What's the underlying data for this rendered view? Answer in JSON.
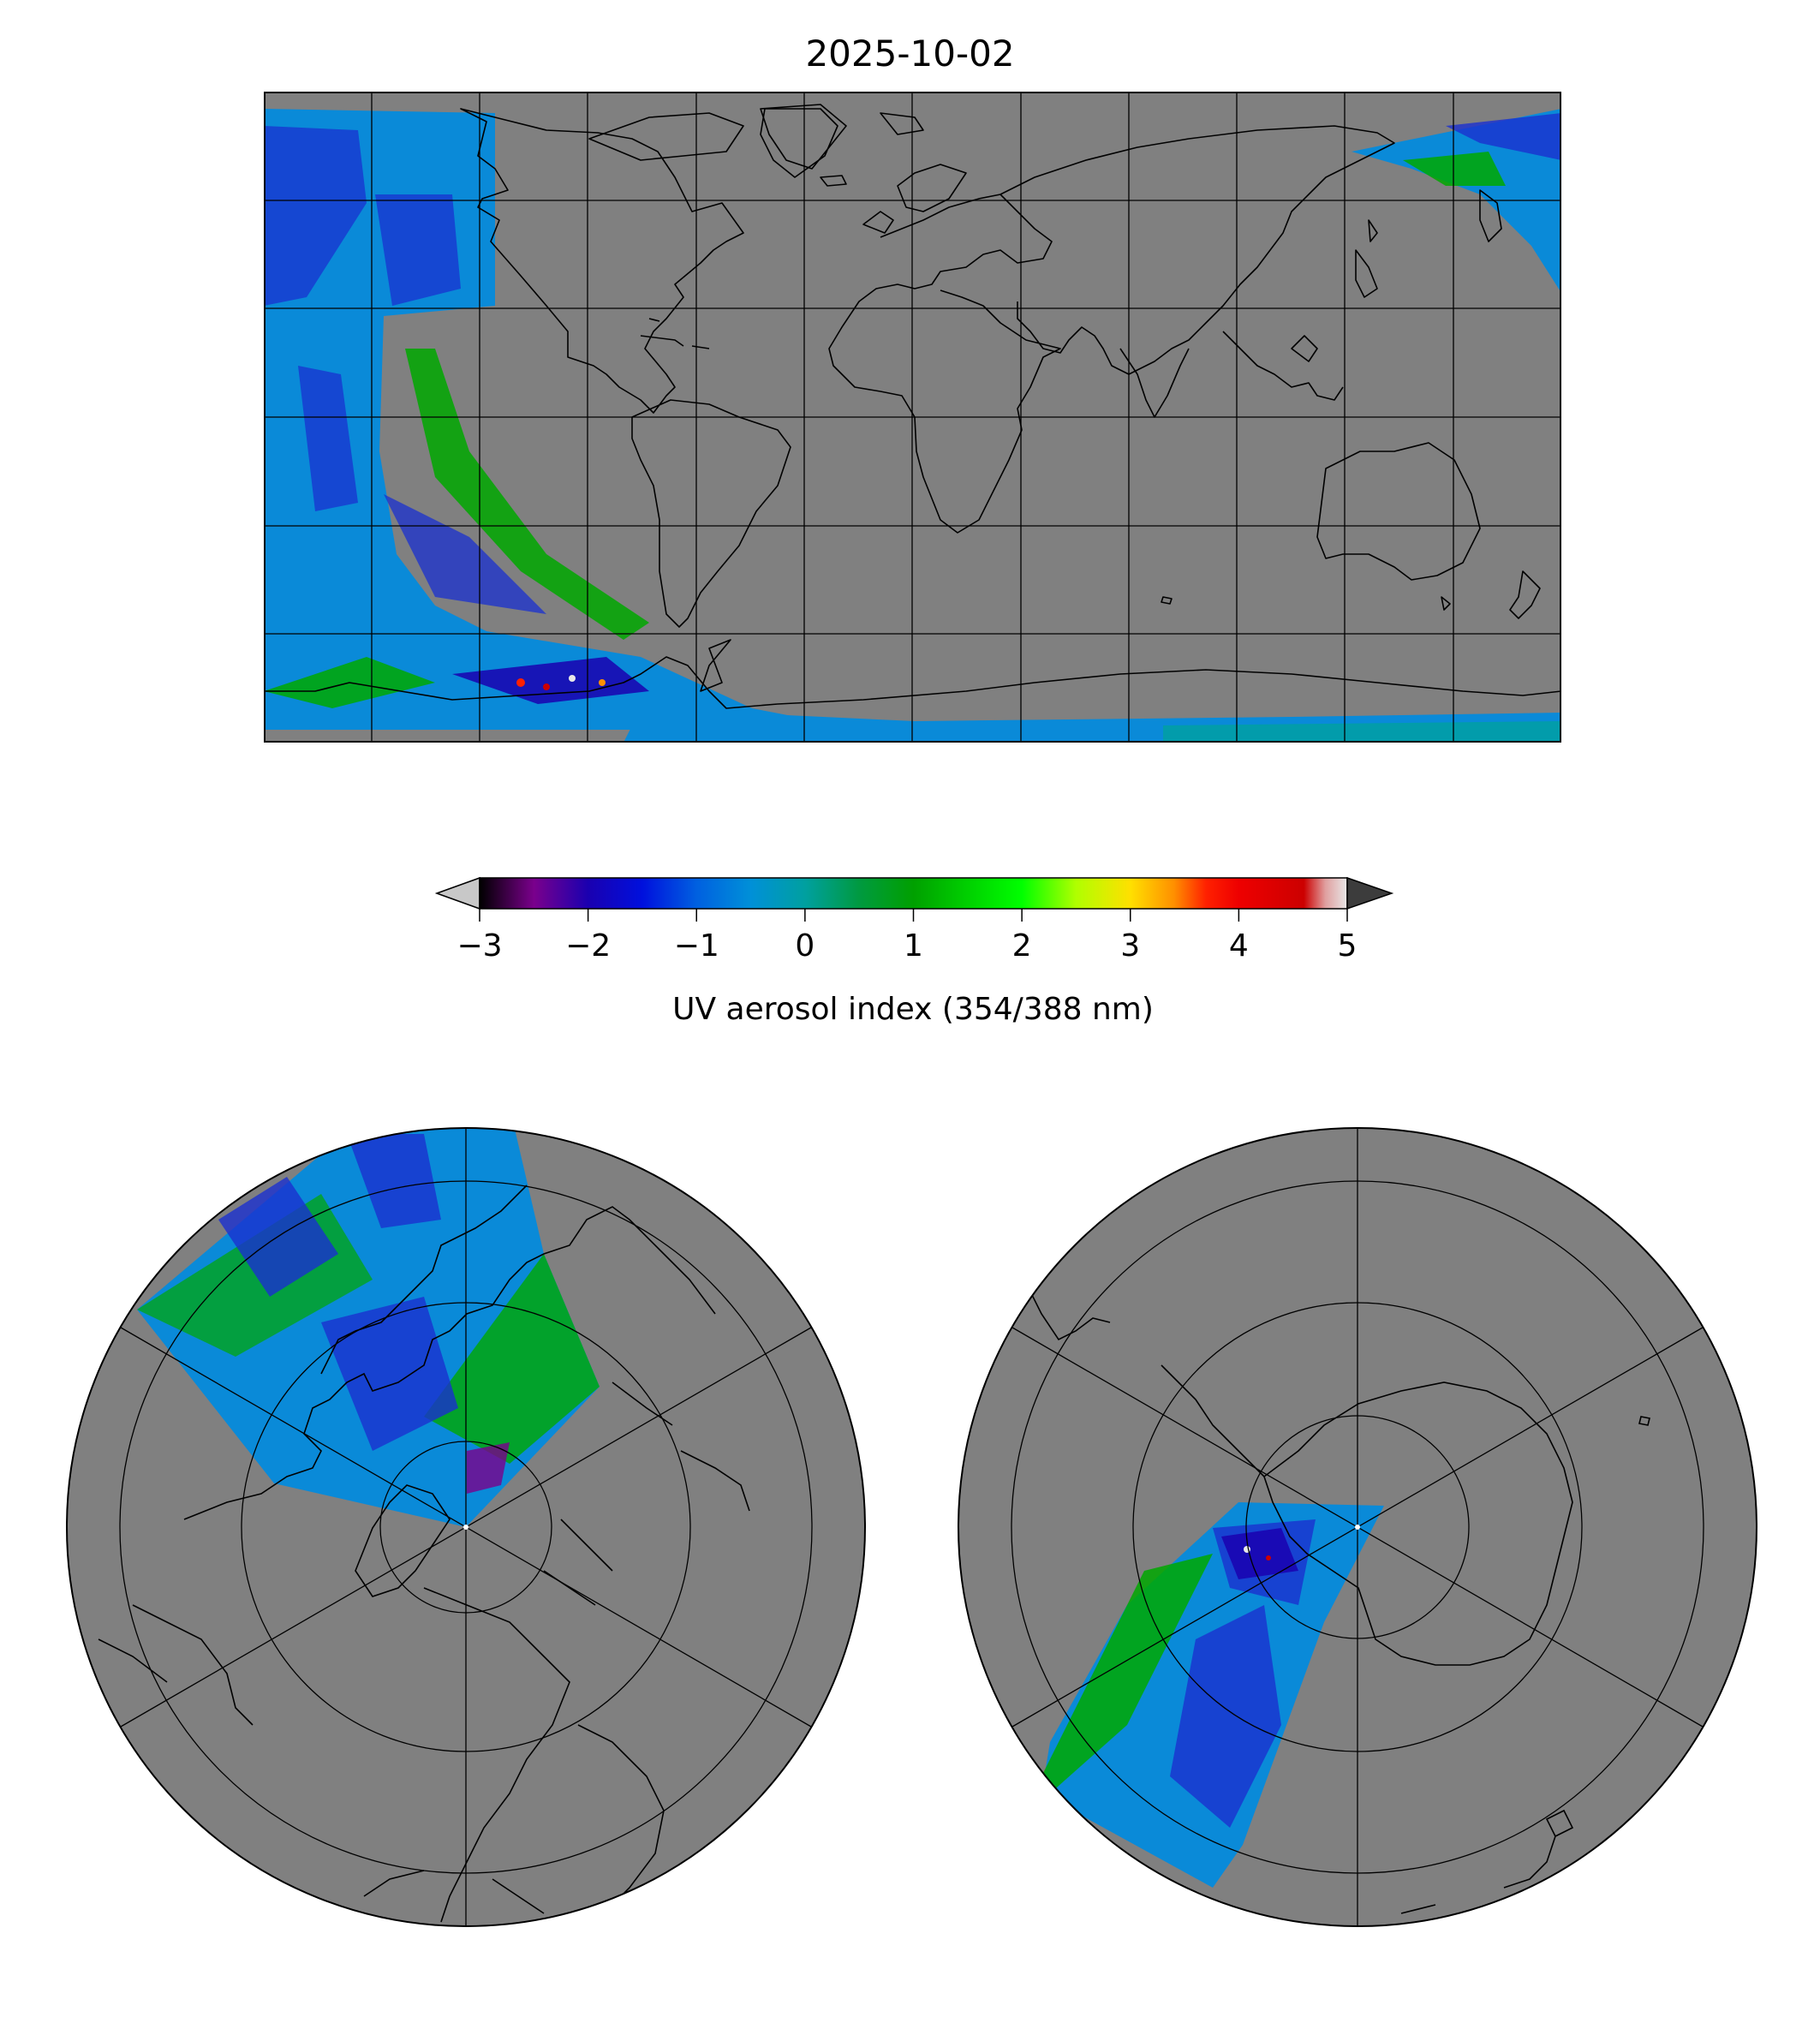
{
  "title": "2025-10-02",
  "colorbar": {
    "label": "UV aerosol index (354/388 nm)",
    "ticks": [
      "−3",
      "−2",
      "−1",
      "0",
      "1",
      "2",
      "3",
      "4",
      "5"
    ],
    "min": -3,
    "max": 5,
    "extend": "both",
    "under_color": "#c8c8c8",
    "over_color": "#3c3c3c",
    "stops": [
      {
        "value": -3.0,
        "color": "#000000"
      },
      {
        "value": -2.5,
        "color": "#7a008c"
      },
      {
        "value": -2.0,
        "color": "#1a00b0"
      },
      {
        "value": -1.5,
        "color": "#0010dd"
      },
      {
        "value": -1.0,
        "color": "#0060e0"
      },
      {
        "value": -0.5,
        "color": "#0090d8"
      },
      {
        "value": 0.0,
        "color": "#00a0a0"
      },
      {
        "value": 0.5,
        "color": "#009a40"
      },
      {
        "value": 1.0,
        "color": "#00a000"
      },
      {
        "value": 1.5,
        "color": "#00d000"
      },
      {
        "value": 2.0,
        "color": "#00ff00"
      },
      {
        "value": 2.5,
        "color": "#b0ff00"
      },
      {
        "value": 3.0,
        "color": "#ffe000"
      },
      {
        "value": 3.4,
        "color": "#ff9000"
      },
      {
        "value": 3.7,
        "color": "#ff2000"
      },
      {
        "value": 4.0,
        "color": "#ee0000"
      },
      {
        "value": 4.6,
        "color": "#cc0000"
      },
      {
        "value": 4.8,
        "color": "#e0a0a0"
      },
      {
        "value": 5.0,
        "color": "#e8e8e8"
      }
    ]
  },
  "colors": {
    "land_no_data": "#808080",
    "coastline": "#000000",
    "gridline": "#000000",
    "swath_main": "#0a8ad8",
    "swath_blue": "#1a30d0",
    "swath_green": "#00a800"
  },
  "maps": {
    "global": {
      "projection": "equirectangular",
      "gridlines": true
    },
    "north_polar": {
      "projection": "north polar stereographic",
      "gridlines": true
    },
    "south_polar": {
      "projection": "south polar stereographic",
      "gridlines": true
    }
  }
}
